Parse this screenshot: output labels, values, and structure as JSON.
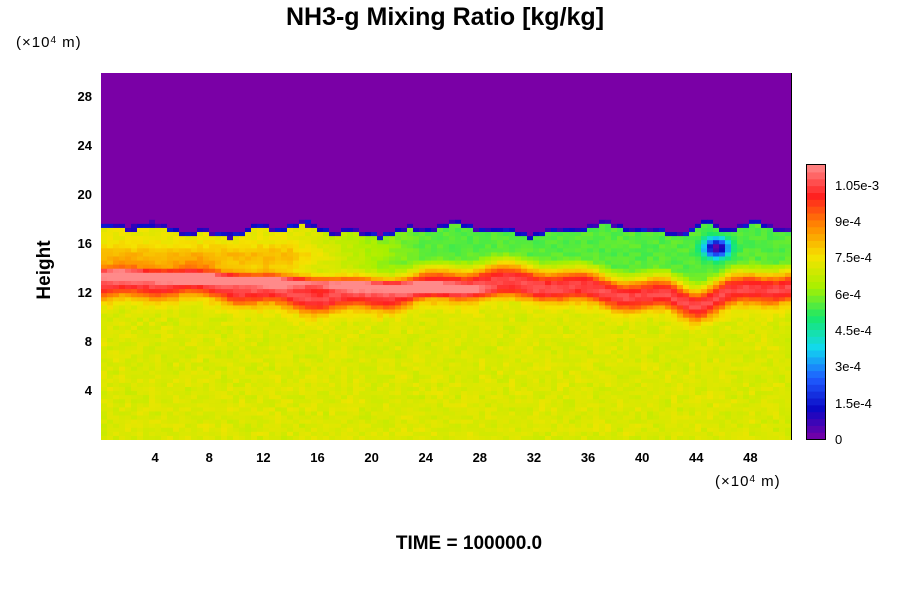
{
  "chart_data": {
    "type": "heatmap",
    "title": "NH3-g Mixing Ratio [kg/kg]",
    "ylabel": "Height",
    "xlabel": "",
    "x_multiplier": {
      "text": "(×10",
      "exponent": "4",
      "units": " m)"
    },
    "y_multiplier": {
      "text": "(×10",
      "exponent": "4",
      "units": " m)"
    },
    "xlim": [
      0,
      51
    ],
    "ylim": [
      0,
      30
    ],
    "x_ticks": [
      "4",
      "8",
      "12",
      "16",
      "20",
      "24",
      "28",
      "32",
      "36",
      "40",
      "44",
      "48"
    ],
    "y_ticks": [
      "4",
      "8",
      "12",
      "16",
      "20",
      "24",
      "28"
    ],
    "colorbar": {
      "range": [
        0,
        0.00114
      ],
      "ticks": [
        "0",
        "1.5e-4",
        "3e-4",
        "4.5e-4",
        "6e-4",
        "7.5e-4",
        "9e-4",
        "1.05e-3"
      ],
      "tick_values": [
        0,
        0.00015,
        0.0003,
        0.00045,
        0.0006,
        0.00075,
        0.0009,
        0.00105
      ],
      "colors": [
        "#7a00a6",
        "#0b08c4",
        "#1f5cff",
        "#12d8f0",
        "#18e86a",
        "#a8f000",
        "#f5e300",
        "#ff8a00",
        "#ff2020",
        "#ff8a8a"
      ]
    },
    "regions": [
      {
        "name": "upper",
        "height_range": [
          17,
          30
        ],
        "value": 0.0
      },
      {
        "name": "sharp-transition",
        "height_range": [
          16.8,
          17.5
        ],
        "value": 0.0001
      },
      {
        "name": "upper-band",
        "height_range": [
          14.5,
          16.8
        ],
        "value": 0.0006
      },
      {
        "name": "band-left",
        "height_range": [
          13.5,
          16
        ],
        "value": 0.0008
      },
      {
        "name": "red-maximum",
        "height_range": [
          11,
          14
        ],
        "value": 0.001
      },
      {
        "name": "lower",
        "height_range": [
          0,
          11
        ],
        "value": 0.00072
      }
    ],
    "grid": false,
    "legend": "colorbar-right"
  },
  "footer": {
    "time_label": "TIME = 100000.0"
  }
}
